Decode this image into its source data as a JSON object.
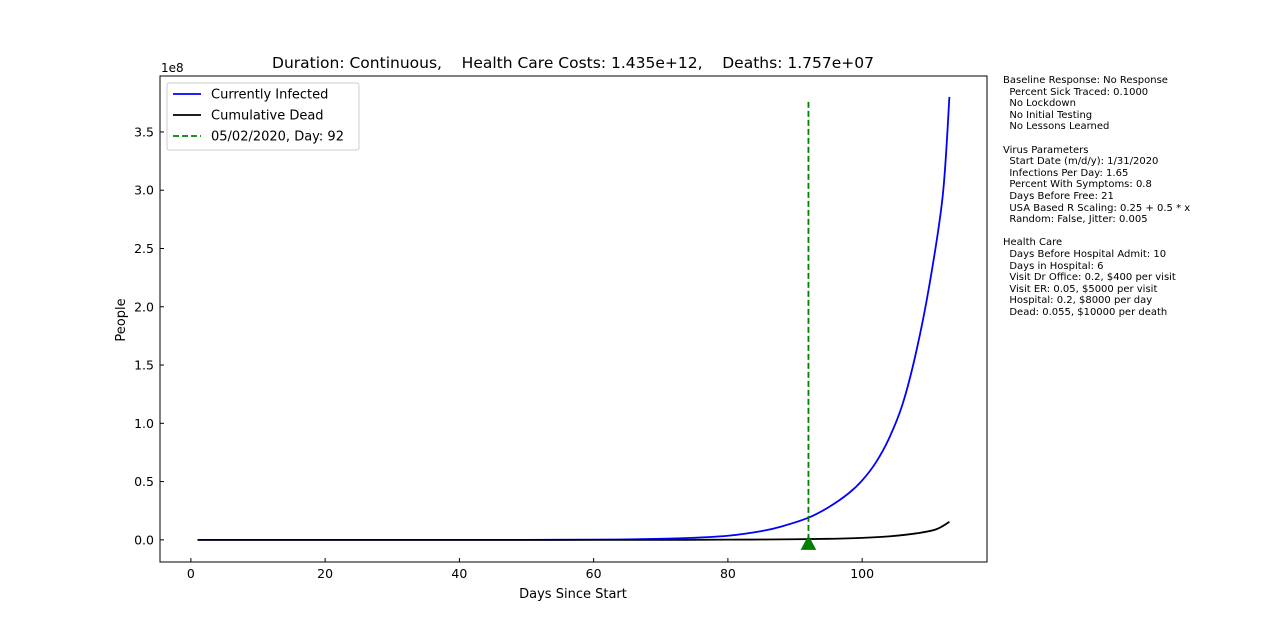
{
  "chart_data": {
    "type": "line",
    "title": "Duration: Continuous,    Health Care Costs: 1.435e+12,    Deaths: 1.757e+07",
    "xlabel": "Days Since Start",
    "ylabel": "People",
    "y_offset_label": "1e8",
    "xlim": [
      -4.6,
      118.6
    ],
    "ylim": [
      -0.19,
      3.98
    ],
    "y_scale_note": "values in units of 1e8",
    "x_ticks": [
      0,
      20,
      40,
      60,
      80,
      100
    ],
    "x_tick_labels": [
      "0",
      "20",
      "40",
      "60",
      "80",
      "100"
    ],
    "y_ticks": [
      0.0,
      0.5,
      1.0,
      1.5,
      2.0,
      2.5,
      3.0,
      3.5
    ],
    "y_tick_labels": [
      "0.0",
      "0.5",
      "1.0",
      "1.5",
      "2.0",
      "2.5",
      "3.0",
      "3.5"
    ],
    "grid": false,
    "legend_position": "top-left",
    "series": [
      {
        "name": "Currently Infected",
        "color": "#0000ff",
        "style": "solid",
        "x": [
          1,
          10,
          20,
          30,
          40,
          50,
          60,
          65,
          70,
          75,
          80,
          85,
          88,
          92,
          95,
          98,
          100,
          102,
          104,
          106,
          108,
          110,
          112,
          113
        ],
        "y": [
          0.0,
          0.0,
          0.0,
          0.0,
          0.0,
          0.0,
          0.002,
          0.004,
          0.009,
          0.018,
          0.035,
          0.075,
          0.115,
          0.19,
          0.28,
          0.4,
          0.51,
          0.66,
          0.87,
          1.16,
          1.6,
          2.18,
          2.95,
          3.8
        ]
      },
      {
        "name": "Cumulative Dead",
        "color": "#000000",
        "style": "solid",
        "x": [
          1,
          20,
          40,
          60,
          70,
          80,
          85,
          90,
          95,
          100,
          104,
          108,
          111,
          113
        ],
        "y": [
          0.0,
          0.0,
          0.0,
          0.0,
          0.0,
          0.002,
          0.003,
          0.005,
          0.009,
          0.017,
          0.03,
          0.055,
          0.09,
          0.155
        ]
      },
      {
        "name": "05/02/2020, Day: 92",
        "color": "#008000",
        "style": "dashed",
        "x": [
          92,
          92
        ],
        "y": [
          0.0,
          3.78
        ]
      }
    ],
    "marker": {
      "shape": "triangle",
      "color": "#008000",
      "x": 92,
      "y": -0.03
    }
  },
  "side_notes": [
    "Baseline Response: No Response",
    "  Percent Sick Traced: 0.1000",
    "  No Lockdown",
    "  No Initial Testing",
    "  No Lessons Learned",
    "",
    "Virus Parameters",
    "  Start Date (m/d/y): 1/31/2020",
    "  Infections Per Day: 1.65",
    "  Percent With Symptoms: 0.8",
    "  Days Before Free: 21",
    "  USA Based R Scaling: 0.25 + 0.5 * x",
    "  Random: False, Jitter: 0.005",
    "",
    "Health Care",
    "  Days Before Hospital Admit: 10",
    "  Days in Hospital: 6",
    "  Visit Dr Office: 0.2, $400 per visit",
    "  Visit ER: 0.05, $5000 per visit",
    "  Hospital: 0.2, $8000 per day",
    "  Dead: 0.055, $10000 per death"
  ]
}
